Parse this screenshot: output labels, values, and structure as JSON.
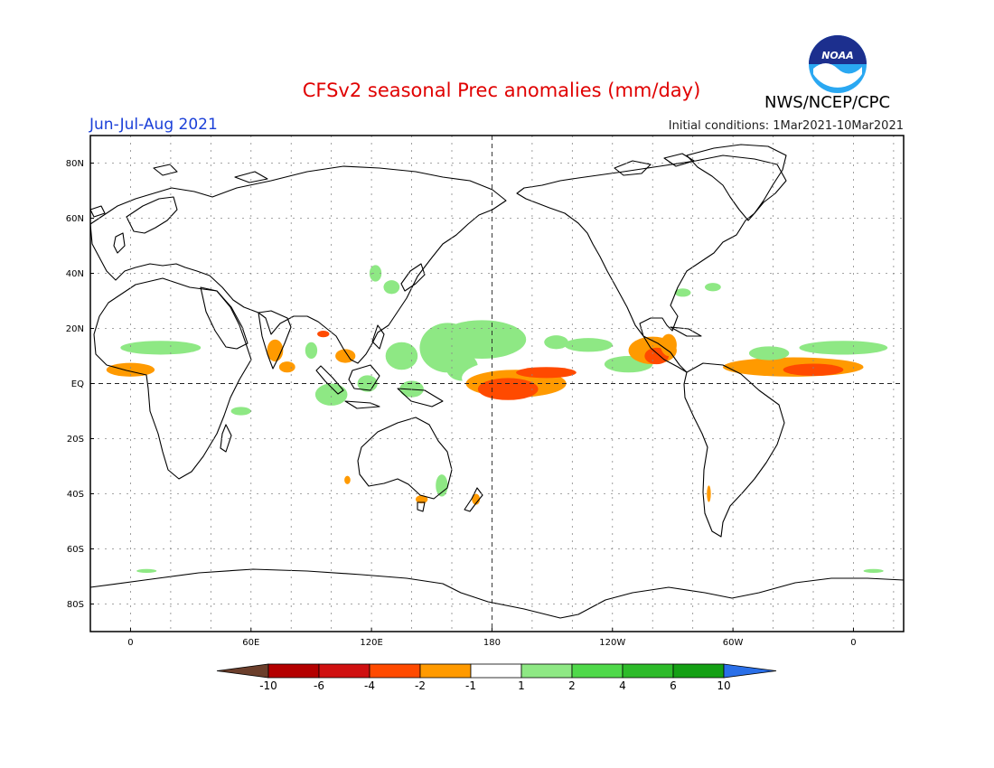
{
  "title": "CFSv2 seasonal Prec anomalies (mm/day)",
  "period": "Jun-Jul-Aug 2021",
  "initial_conditions": "Initial conditions: 1Mar2021-10Mar2021",
  "agency": "NWS/NCEP/CPC",
  "logo_text": "NOAA",
  "chart_data": {
    "type": "heatmap",
    "lon_ticks": [
      "0",
      "60E",
      "120E",
      "180",
      "120W",
      "60W",
      "0"
    ],
    "lat_ticks": [
      "80N",
      "60N",
      "40N",
      "20N",
      "EQ",
      "20S",
      "40S",
      "60S",
      "80S"
    ],
    "xlim": [
      -20,
      385
    ],
    "ylim": [
      -90,
      90
    ],
    "colorbar": {
      "levels": [
        "-10",
        "-6",
        "-4",
        "-2",
        "-1",
        "1",
        "2",
        "4",
        "6",
        "10"
      ],
      "colors": [
        "#6b3e2b",
        "#b40000",
        "#d01010",
        "#ff4a00",
        "#ff9a00",
        "#ffffff",
        "#8ee884",
        "#4fd94a",
        "#2dbb2a",
        "#14a014",
        "#2a6fe8"
      ]
    },
    "anomaly_regions": [
      {
        "lon": 330,
        "lat": 6,
        "rx": 35,
        "ry": 3.5,
        "level": -2
      },
      {
        "lon": 340,
        "lat": 5,
        "rx": 15,
        "ry": 2.2,
        "level": -4
      },
      {
        "lon": 0,
        "lat": 5,
        "rx": 12,
        "ry": 2.5,
        "level": -2
      },
      {
        "lon": 355,
        "lat": 13,
        "rx": 22,
        "ry": 2.5,
        "level": 1
      },
      {
        "lon": 15,
        "lat": 13,
        "rx": 20,
        "ry": 2.5,
        "level": 1
      },
      {
        "lon": 175,
        "lat": 16,
        "rx": 22,
        "ry": 7,
        "level": 1
      },
      {
        "lon": 158,
        "lat": 13,
        "rx": 14,
        "ry": 9,
        "level": 1
      },
      {
        "lon": 135,
        "lat": 10,
        "rx": 8,
        "ry": 5,
        "level": 1
      },
      {
        "lon": 165,
        "lat": 6,
        "rx": 8,
        "ry": 5,
        "level": 1
      },
      {
        "lon": 228,
        "lat": 14,
        "rx": 12,
        "ry": 2.5,
        "level": 1
      },
      {
        "lon": 212,
        "lat": 15,
        "rx": 6,
        "ry": 2.5,
        "level": 1
      },
      {
        "lon": 318,
        "lat": 11,
        "rx": 10,
        "ry": 2.5,
        "level": 1
      },
      {
        "lon": 248,
        "lat": 7,
        "rx": 12,
        "ry": 3,
        "level": 1
      },
      {
        "lon": 195,
        "lat": 2,
        "rx": 30,
        "ry": 7,
        "level": -1
      },
      {
        "lon": 192,
        "lat": 0,
        "rx": 25,
        "ry": 5,
        "level": -2
      },
      {
        "lon": 188,
        "lat": -2,
        "rx": 15,
        "ry": 4,
        "level": -4
      },
      {
        "lon": 207,
        "lat": 4,
        "rx": 15,
        "ry": 2,
        "level": -4
      },
      {
        "lon": 260,
        "lat": 12,
        "rx": 12,
        "ry": 5,
        "level": -2
      },
      {
        "lon": 262,
        "lat": 10,
        "rx": 6,
        "ry": 3,
        "level": -4
      },
      {
        "lon": 268,
        "lat": 14,
        "rx": 4,
        "ry": 4,
        "level": -2
      },
      {
        "lon": 72,
        "lat": 12,
        "rx": 4,
        "ry": 4,
        "level": -2
      },
      {
        "lon": 78,
        "lat": 6,
        "rx": 4,
        "ry": 2,
        "level": -2
      },
      {
        "lon": 96,
        "lat": 18,
        "rx": 3,
        "ry": 1.2,
        "level": -4
      },
      {
        "lon": 107,
        "lat": 10,
        "rx": 5,
        "ry": 2.5,
        "level": -2
      },
      {
        "lon": 90,
        "lat": 12,
        "rx": 3,
        "ry": 3,
        "level": 1
      },
      {
        "lon": 100,
        "lat": -4,
        "rx": 8,
        "ry": 4,
        "level": 1
      },
      {
        "lon": 118,
        "lat": 0,
        "rx": 5,
        "ry": 3,
        "level": 1
      },
      {
        "lon": 140,
        "lat": -2,
        "rx": 6,
        "ry": 3,
        "level": 1
      },
      {
        "lon": 122,
        "lat": 40,
        "rx": 3,
        "ry": 3,
        "level": 1
      },
      {
        "lon": 130,
        "lat": 35,
        "rx": 4,
        "ry": 2.5,
        "level": 1
      },
      {
        "lon": 275,
        "lat": 33,
        "rx": 4,
        "ry": 1.5,
        "level": 1
      },
      {
        "lon": 290,
        "lat": 35,
        "rx": 4,
        "ry": 1.5,
        "level": 1
      },
      {
        "lon": 155,
        "lat": -37,
        "rx": 3,
        "ry": 4,
        "level": 1
      },
      {
        "lon": 145,
        "lat": -42,
        "rx": 3,
        "ry": 1.5,
        "level": -2
      },
      {
        "lon": 172,
        "lat": -42,
        "rx": 2,
        "ry": 2,
        "level": -2
      },
      {
        "lon": 288,
        "lat": -40,
        "rx": 1,
        "ry": 3,
        "level": -2
      },
      {
        "lon": 108,
        "lat": -35,
        "rx": 1.5,
        "ry": 1.5,
        "level": -2
      },
      {
        "lon": 55,
        "lat": -10,
        "rx": 5,
        "ry": 1.5,
        "level": 1
      },
      {
        "lon": 8,
        "lat": -68,
        "rx": 5,
        "ry": 0.7,
        "level": 1
      },
      {
        "lon": 370,
        "lat": -68,
        "rx": 5,
        "ry": 0.7,
        "level": 1
      }
    ]
  }
}
